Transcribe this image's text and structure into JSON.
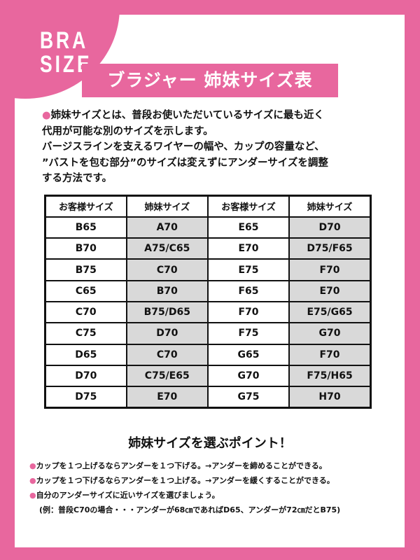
{
  "logo": {
    "line1": "BRA",
    "line2": "SIZE"
  },
  "title": "ブラジャー 姉妹サイズ表",
  "intro": [
    "姉妹サイズとは、普段お使いただいているサイズに最も近く",
    "代用が可能な別のサイズを示します。",
    "バージスラインを支えるワイヤーの幅や、カップの容量など、",
    "”バストを包む部分”のサイズは変えずにアンダーサイズを調整",
    "する方法です。"
  ],
  "table": {
    "headers": [
      "お客様サイズ",
      "姉妹サイズ",
      "お客様サイズ",
      "姉妹サイズ"
    ],
    "rows": [
      [
        "B65",
        "A70",
        "E65",
        "D70"
      ],
      [
        "B70",
        "A75/C65",
        "E70",
        "D75/F65"
      ],
      [
        "B75",
        "C70",
        "E75",
        "F70"
      ],
      [
        "C65",
        "B70",
        "F65",
        "E70"
      ],
      [
        "C70",
        "B75/D65",
        "F70",
        "E75/G65"
      ],
      [
        "C75",
        "D70",
        "F75",
        "G70"
      ],
      [
        "D65",
        "C70",
        "G65",
        "F70"
      ],
      [
        "D70",
        "C75/E65",
        "G70",
        "F75/H65"
      ],
      [
        "D75",
        "E70",
        "G75",
        "H70"
      ]
    ]
  },
  "points": {
    "heading": "姉妹サイズを選ぶポイント！",
    "items": [
      "カップを１つ上げるならアンダーを１つ下げる。→アンダーを締めることができる。",
      "カップを１つ下げるならアンダーを１つ上げる。→アンダーを緩くすることができる。",
      "自分のアンダーサイズに近いサイズを選びましょう。"
    ],
    "example": "(例：普段C70の場合・・・アンダーが68㎝であればD65、アンダーが72㎝だとB75)"
  },
  "colors": {
    "accent": "#e8679e",
    "cell_gray": "#d9d9d9"
  }
}
